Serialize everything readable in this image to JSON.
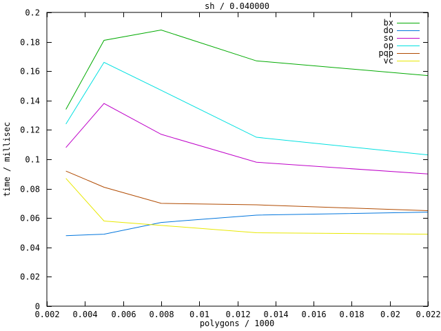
{
  "chart_data": {
    "type": "line",
    "title": "sh / 0.040000",
    "xlabel": "polygons / 1000",
    "ylabel": "time / millisec",
    "xlim": [
      0.002,
      0.022
    ],
    "ylim": [
      0,
      0.2
    ],
    "xticks": [
      "0.002",
      "0.004",
      "0.006",
      "0.008",
      "0.01",
      "0.012",
      "0.014",
      "0.016",
      "0.018",
      "0.02",
      "0.022"
    ],
    "yticks": [
      "0",
      "0.02",
      "0.04",
      "0.06",
      "0.08",
      "0.1",
      "0.12",
      "0.14",
      "0.16",
      "0.18",
      "0.2"
    ],
    "grid": false,
    "legend_position": "top-right-inside",
    "frame_color": "#000000",
    "background_color": "#ffffff",
    "x": [
      0.003,
      0.005,
      0.008,
      0.013,
      0.022
    ],
    "series": [
      {
        "name": "bx",
        "color": "#00aa00",
        "values": [
          0.134,
          0.181,
          0.188,
          0.167,
          0.157
        ]
      },
      {
        "name": "do",
        "color": "#0075dd",
        "values": [
          0.048,
          0.049,
          0.057,
          0.062,
          0.064
        ]
      },
      {
        "name": "so",
        "color": "#be00c8",
        "values": [
          0.108,
          0.138,
          0.117,
          0.098,
          0.09
        ]
      },
      {
        "name": "op",
        "color": "#00e0e0",
        "values": [
          0.124,
          0.166,
          0.147,
          0.115,
          0.103
        ]
      },
      {
        "name": "pqp",
        "color": "#b04a00",
        "values": [
          0.092,
          0.081,
          0.07,
          0.069,
          0.065
        ]
      },
      {
        "name": "vc",
        "color": "#e8e800",
        "values": [
          0.087,
          0.058,
          0.055,
          0.05,
          0.049
        ]
      }
    ]
  }
}
